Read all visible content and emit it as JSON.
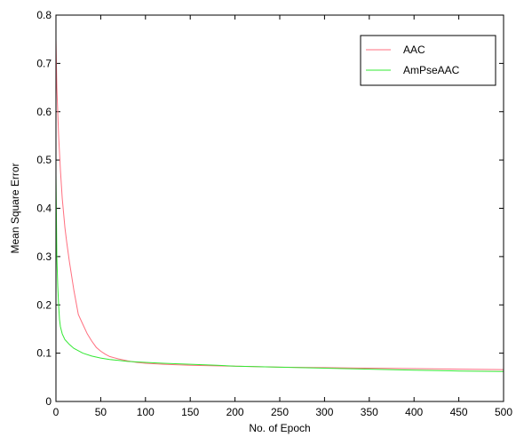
{
  "chart_data": {
    "type": "line",
    "title": "",
    "xlabel": "No. of Epoch",
    "ylabel": "Mean Square Error",
    "xlim": [
      0,
      500
    ],
    "ylim": [
      0,
      0.8
    ],
    "xticks": [
      0,
      50,
      100,
      150,
      200,
      250,
      300,
      350,
      400,
      450,
      500
    ],
    "yticks": [
      0,
      0.1,
      0.2,
      0.3,
      0.4,
      0.5,
      0.6,
      0.7,
      0.8
    ],
    "xtick_labels": [
      "0",
      "50",
      "100",
      "150",
      "200",
      "250",
      "300",
      "350",
      "400",
      "450",
      "500"
    ],
    "ytick_labels": [
      "0",
      "0.1",
      "0.2",
      "0.3",
      "0.4",
      "0.5",
      "0.6",
      "0.7",
      "0.8"
    ],
    "grid": false,
    "legend_position": "top-right",
    "series": [
      {
        "name": "AAC",
        "color": "#ff6f7f",
        "x": [
          0,
          1,
          2,
          3,
          5,
          7,
          10,
          12,
          15,
          20,
          25,
          30,
          35,
          40,
          45,
          50,
          55,
          60,
          70,
          80,
          90,
          100,
          120,
          150,
          200,
          250,
          300,
          350,
          400,
          450,
          500
        ],
        "y": [
          0.75,
          0.65,
          0.6,
          0.55,
          0.48,
          0.42,
          0.36,
          0.33,
          0.29,
          0.23,
          0.18,
          0.16,
          0.14,
          0.125,
          0.112,
          0.104,
          0.098,
          0.093,
          0.088,
          0.084,
          0.081,
          0.079,
          0.077,
          0.075,
          0.073,
          0.071,
          0.07,
          0.069,
          0.068,
          0.067,
          0.066
        ]
      },
      {
        "name": "AmPseAAC",
        "color": "#33e833",
        "x": [
          0,
          1,
          2,
          3,
          4,
          5,
          7,
          10,
          15,
          20,
          30,
          40,
          50,
          60,
          70,
          80,
          100,
          120,
          150,
          180,
          200,
          250,
          300,
          350,
          400,
          450,
          500
        ],
        "y": [
          0.47,
          0.3,
          0.24,
          0.2,
          0.17,
          0.155,
          0.14,
          0.128,
          0.118,
          0.11,
          0.1,
          0.094,
          0.09,
          0.087,
          0.085,
          0.083,
          0.081,
          0.079,
          0.077,
          0.075,
          0.073,
          0.071,
          0.069,
          0.067,
          0.065,
          0.063,
          0.062
        ]
      }
    ]
  }
}
